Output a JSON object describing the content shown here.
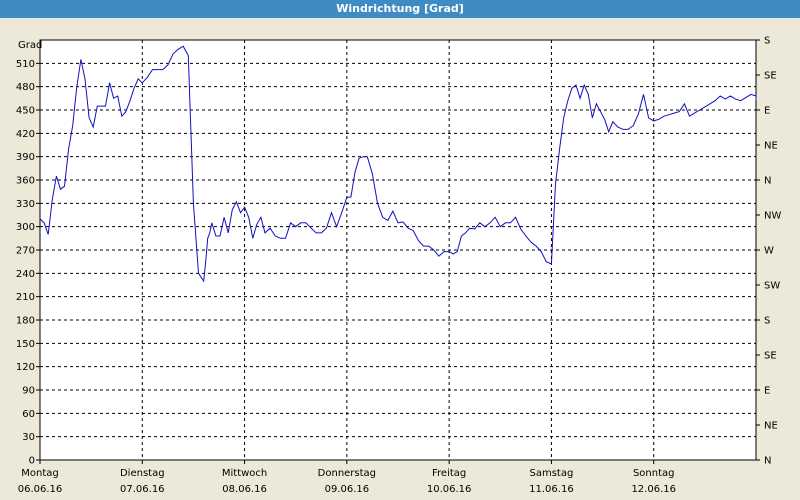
{
  "window": {
    "title": "Windrichtung [Grad]"
  },
  "chart_data": {
    "type": "line",
    "title": "Windrichtung [Grad]",
    "ylabel": "Grad",
    "ylim": [
      0,
      540
    ],
    "y_ticks": [
      0,
      30,
      60,
      90,
      120,
      150,
      180,
      210,
      240,
      270,
      300,
      330,
      360,
      390,
      420,
      450,
      480,
      510
    ],
    "y_right_ticks": [
      "N",
      "NE",
      "E",
      "SE",
      "S",
      "SW",
      "W",
      "NW",
      "N",
      "NE",
      "E",
      "SE",
      "S"
    ],
    "x_ticks": [
      {
        "day": "Montag",
        "date": "06.06.16"
      },
      {
        "day": "Dienstag",
        "date": "07.06.16"
      },
      {
        "day": "Mittwoch",
        "date": "08.06.16"
      },
      {
        "day": "Donnerstag",
        "date": "09.06.16"
      },
      {
        "day": "Freitag",
        "date": "10.06.16"
      },
      {
        "day": "Samstag",
        "date": "11.06.16"
      },
      {
        "day": "Sonntag",
        "date": "12.06.16"
      }
    ],
    "grid": true,
    "colors": {
      "line": "#1010c0",
      "background": "#ffffff",
      "titlebar": "#3f8bc4"
    },
    "series": [
      {
        "x": [
          0,
          0.04,
          0.08,
          0.12,
          0.16,
          0.2,
          0.24,
          0.28,
          0.32,
          0.36,
          0.4,
          0.44,
          0.48,
          0.52,
          0.56,
          0.6,
          0.64,
          0.68,
          0.72,
          0.76,
          0.8,
          0.84,
          0.88,
          0.92,
          0.96,
          1.0,
          1.05,
          1.1,
          1.15,
          1.2,
          1.25,
          1.3,
          1.35,
          1.4,
          1.45,
          1.5,
          1.55,
          1.6,
          1.62,
          1.64,
          1.66,
          1.68,
          1.72,
          1.76,
          1.8,
          1.84,
          1.88,
          1.92,
          1.96,
          2.0,
          2.04,
          2.08,
          2.12,
          2.16,
          2.2,
          2.25,
          2.3,
          2.35,
          2.4,
          2.45,
          2.5,
          2.55,
          2.6,
          2.65,
          2.7,
          2.75,
          2.8,
          2.85,
          2.9,
          2.95,
          3.0,
          3.04,
          3.08,
          3.12,
          3.16,
          3.2,
          3.25,
          3.3,
          3.35,
          3.4,
          3.45,
          3.5,
          3.55,
          3.6,
          3.65,
          3.7,
          3.75,
          3.8,
          3.85,
          3.9,
          3.95,
          4.0,
          4.04,
          4.08,
          4.12,
          4.16,
          4.2,
          4.25,
          4.3,
          4.35,
          4.4,
          4.45,
          4.5,
          4.55,
          4.6,
          4.65,
          4.7,
          4.75,
          4.8,
          4.85,
          4.9,
          4.95,
          5.0,
          5.04,
          5.08,
          5.12,
          5.16,
          5.2,
          5.24,
          5.28,
          5.32,
          5.36,
          5.4,
          5.44,
          5.48,
          5.52,
          5.56,
          5.6,
          5.65,
          5.7,
          5.75,
          5.8,
          5.85,
          5.9,
          5.95,
          6.0,
          6.05,
          6.1,
          6.15,
          6.2,
          6.25,
          6.3,
          6.35,
          6.4,
          6.45,
          6.5,
          6.55,
          6.6,
          6.65,
          6.7,
          6.75,
          6.8,
          6.85,
          6.9,
          6.95,
          7.0,
          7.04,
          7.08
        ],
        "values": [
          310,
          305,
          290,
          335,
          365,
          348,
          352,
          400,
          430,
          480,
          515,
          490,
          440,
          428,
          455,
          455,
          455,
          485,
          465,
          468,
          442,
          448,
          462,
          478,
          490,
          485,
          492,
          502,
          502,
          502,
          508,
          522,
          528,
          532,
          520,
          330,
          240,
          230,
          255,
          285,
          292,
          305,
          288,
          288,
          312,
          292,
          322,
          332,
          318,
          325,
          312,
          285,
          303,
          312,
          292,
          298,
          288,
          285,
          285,
          305,
          300,
          305,
          305,
          298,
          292,
          292,
          298,
          318,
          300,
          318,
          338,
          338,
          370,
          388,
          390,
          390,
          368,
          330,
          312,
          308,
          320,
          305,
          306,
          298,
          295,
          282,
          275,
          275,
          270,
          262,
          268,
          268,
          265,
          268,
          288,
          292,
          298,
          297,
          305,
          300,
          305,
          312,
          300,
          305,
          305,
          312,
          297,
          288,
          280,
          275,
          268,
          255,
          252,
          355,
          400,
          440,
          462,
          478,
          482,
          465,
          482,
          470,
          440,
          458,
          448,
          438,
          422,
          435,
          428,
          425,
          425,
          430,
          445,
          470,
          440,
          436,
          438,
          442,
          444,
          446,
          448,
          458,
          442,
          446,
          450,
          454,
          458,
          462,
          468,
          464,
          468,
          464,
          462,
          466,
          470,
          468,
          465,
          463
        ]
      }
    ]
  }
}
